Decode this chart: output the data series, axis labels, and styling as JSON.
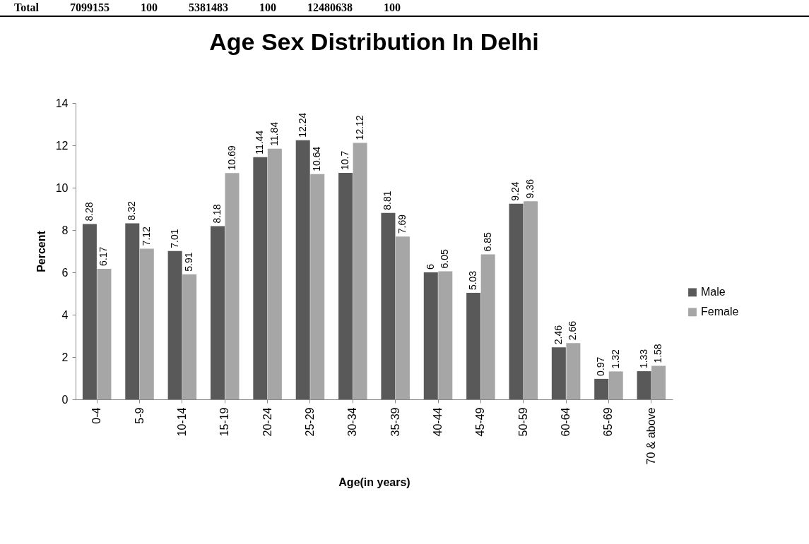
{
  "chart_data": {
    "type": "bar",
    "title": "Age Sex Distribution In Delhi",
    "xlabel": "Age(in years)",
    "ylabel": "Percent",
    "categories": [
      "0-4",
      "5-9",
      "10-14",
      "15-19",
      "20-24",
      "25-29",
      "30-34",
      "35-39",
      "40-44",
      "45-49",
      "50-59",
      "60-64",
      "65-69",
      "70 & above"
    ],
    "series": [
      {
        "name": "Male",
        "color": "#595959",
        "values": [
          8.28,
          8.32,
          7.01,
          8.18,
          11.44,
          12.24,
          10.7,
          8.81,
          6,
          5.03,
          9.24,
          2.46,
          0.97,
          1.33
        ]
      },
      {
        "name": "Female",
        "color": "#a6a6a6",
        "values": [
          6.17,
          7.12,
          5.91,
          10.69,
          11.84,
          10.64,
          12.12,
          7.69,
          6.05,
          6.85,
          9.36,
          2.66,
          1.32,
          1.58
        ]
      }
    ],
    "ylim": [
      0,
      14
    ],
    "yticks": [
      0,
      2,
      4,
      6,
      8,
      10,
      12,
      14
    ],
    "grid": false,
    "legend": "right",
    "data_labels": true,
    "annotations": [
      "Total 7099155 100 5381483 100 12480638 100"
    ]
  }
}
